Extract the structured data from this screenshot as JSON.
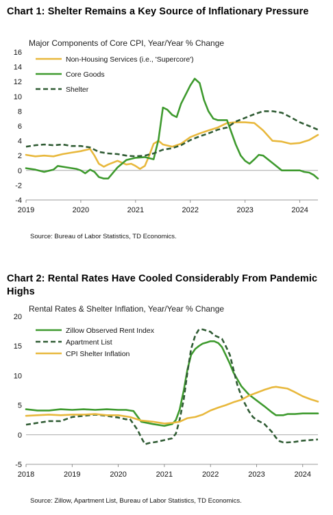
{
  "colors": {
    "supercore": "#E8B83C",
    "core_goods": "#3E9A2E",
    "shelter": "#2F5B33",
    "zillow": "#3E9A2E",
    "apartment_list": "#2F5B33",
    "cpi_shelter": "#E8B83C"
  },
  "chart1_text": {
    "title": "Chart 1: Shelter Remains a Key Source of Inflationary Pressure",
    "subtitle": "Major Components of Core CPI, Year/Year % Change",
    "source": "Source:  Bureau of Labor Statistics, TD Economics."
  },
  "chart2_text": {
    "title": "Chart 2: Rental Rates Have Cooled Considerably From Pandemic Highs",
    "subtitle": "Rental Rates & Shelter Inflation, Year/Year % Change",
    "source": "Source:  Zillow,  Apartment List, Bureau of Labor Statistics, TD Economics."
  },
  "chart_data": [
    {
      "type": "line",
      "title": "Chart 1: Shelter Remains a Key Source of Inflationary Pressure",
      "subtitle": "Major Components of Core CPI, Year/Year % Change",
      "xlim": [
        2019.0,
        2024.33
      ],
      "ylim": [
        -4,
        16
      ],
      "yticks": [
        -4,
        -2,
        0,
        2,
        4,
        6,
        8,
        10,
        12,
        14,
        16
      ],
      "xticks": [
        2019,
        2020,
        2021,
        2022,
        2023,
        2024
      ],
      "grid": false,
      "legend_position": "top-left",
      "series": [
        {
          "name": "Non-Housing Services (i.e., 'Supercore')",
          "style": "solid",
          "x": [
            2019.0,
            2019.17,
            2019.33,
            2019.5,
            2019.67,
            2019.83,
            2020.0,
            2020.17,
            2020.25,
            2020.33,
            2020.42,
            2020.5,
            2020.67,
            2020.83,
            2020.92,
            2021.0,
            2021.08,
            2021.17,
            2021.25,
            2021.33,
            2021.42,
            2021.5,
            2021.67,
            2021.83,
            2022.0,
            2022.17,
            2022.33,
            2022.5,
            2022.67,
            2022.83,
            2023.0,
            2023.17,
            2023.33,
            2023.5,
            2023.67,
            2023.83,
            2024.0,
            2024.17,
            2024.33
          ],
          "y": [
            2.1,
            1.9,
            2.0,
            1.9,
            2.2,
            2.4,
            2.6,
            2.9,
            2.0,
            0.9,
            0.5,
            0.8,
            1.3,
            0.8,
            0.9,
            0.6,
            0.2,
            0.6,
            2.0,
            3.6,
            4.0,
            3.5,
            3.2,
            3.6,
            4.5,
            5.0,
            5.4,
            5.8,
            6.4,
            6.5,
            6.5,
            6.4,
            5.4,
            4.0,
            3.9,
            3.6,
            3.7,
            4.1,
            4.8
          ]
        },
        {
          "name": "Core Goods",
          "style": "solid",
          "x": [
            2019.0,
            2019.17,
            2019.33,
            2019.5,
            2019.58,
            2019.75,
            2019.92,
            2020.0,
            2020.08,
            2020.17,
            2020.25,
            2020.33,
            2020.42,
            2020.5,
            2020.58,
            2020.67,
            2020.83,
            2021.0,
            2021.17,
            2021.33,
            2021.42,
            2021.5,
            2021.58,
            2021.67,
            2021.75,
            2021.83,
            2022.0,
            2022.08,
            2022.17,
            2022.25,
            2022.33,
            2022.42,
            2022.5,
            2022.67,
            2022.83,
            2022.92,
            2023.0,
            2023.08,
            2023.17,
            2023.25,
            2023.33,
            2023.5,
            2023.67,
            2023.83,
            2024.0,
            2024.08,
            2024.17,
            2024.25,
            2024.33
          ],
          "y": [
            0.3,
            0.1,
            -0.2,
            0.1,
            0.6,
            0.4,
            0.2,
            0.0,
            -0.4,
            0.1,
            -0.2,
            -0.9,
            -1.1,
            -1.1,
            -0.4,
            0.4,
            1.4,
            1.7,
            1.8,
            1.5,
            4.2,
            8.5,
            8.2,
            7.5,
            7.2,
            9.0,
            11.5,
            12.4,
            11.8,
            9.5,
            8.0,
            7.0,
            6.8,
            6.8,
            3.5,
            2.0,
            1.3,
            0.9,
            1.5,
            2.1,
            2.0,
            1.0,
            0.0,
            0.0,
            0.0,
            -0.2,
            -0.3,
            -0.6,
            -1.1
          ]
        },
        {
          "name": "Shelter",
          "style": "dashed",
          "x": [
            2019.0,
            2019.17,
            2019.33,
            2019.5,
            2019.67,
            2019.83,
            2020.0,
            2020.17,
            2020.33,
            2020.5,
            2020.67,
            2020.83,
            2021.0,
            2021.17,
            2021.33,
            2021.5,
            2021.67,
            2021.83,
            2022.0,
            2022.17,
            2022.33,
            2022.5,
            2022.67,
            2022.83,
            2023.0,
            2023.17,
            2023.33,
            2023.5,
            2023.67,
            2023.83,
            2024.0,
            2024.17,
            2024.33
          ],
          "y": [
            3.2,
            3.4,
            3.5,
            3.4,
            3.5,
            3.3,
            3.3,
            3.1,
            2.5,
            2.3,
            2.2,
            2.0,
            1.9,
            2.0,
            2.3,
            2.8,
            3.0,
            3.4,
            4.1,
            4.6,
            5.0,
            5.5,
            5.8,
            6.6,
            7.1,
            7.6,
            8.0,
            8.0,
            7.8,
            7.2,
            6.5,
            6.0,
            5.5
          ]
        }
      ]
    },
    {
      "type": "line",
      "title": "Chart 2: Rental Rates Have Cooled Considerably From Pandemic Highs",
      "subtitle": "Rental Rates & Shelter Inflation, Year/Year % Change",
      "xlim": [
        2018.0,
        2024.33
      ],
      "ylim": [
        -5,
        20
      ],
      "yticks": [
        -5,
        0,
        5,
        10,
        15,
        20
      ],
      "xticks": [
        2018,
        2019,
        2020,
        2021,
        2022,
        2023,
        2024
      ],
      "grid": false,
      "legend_position": "top-left",
      "series": [
        {
          "name": "Zillow Observed Rent Index",
          "style": "solid",
          "x": [
            2018.0,
            2018.25,
            2018.5,
            2018.75,
            2019.0,
            2019.25,
            2019.5,
            2019.75,
            2020.0,
            2020.17,
            2020.25,
            2020.33,
            2020.5,
            2020.75,
            2021.0,
            2021.17,
            2021.25,
            2021.33,
            2021.42,
            2021.5,
            2021.58,
            2021.67,
            2021.75,
            2021.83,
            2021.92,
            2022.0,
            2022.08,
            2022.17,
            2022.25,
            2022.33,
            2022.42,
            2022.5,
            2022.67,
            2022.83,
            2023.0,
            2023.17,
            2023.33,
            2023.42,
            2023.5,
            2023.58,
            2023.67,
            2023.83,
            2024.0,
            2024.17,
            2024.33
          ],
          "y": [
            4.3,
            4.1,
            4.1,
            4.3,
            4.2,
            4.3,
            4.2,
            4.3,
            4.2,
            4.2,
            4.1,
            4.0,
            2.2,
            1.8,
            1.5,
            1.8,
            2.5,
            4.2,
            7.5,
            11.0,
            13.5,
            14.5,
            15.0,
            15.4,
            15.6,
            15.8,
            15.8,
            15.5,
            14.8,
            13.5,
            12.0,
            10.5,
            8.2,
            6.8,
            5.8,
            4.8,
            3.8,
            3.3,
            3.3,
            3.3,
            3.5,
            3.5,
            3.6,
            3.6,
            3.6
          ]
        },
        {
          "name": "Apartment List",
          "style": "dashed",
          "x": [
            2018.0,
            2018.25,
            2018.5,
            2018.75,
            2019.0,
            2019.25,
            2019.5,
            2019.75,
            2020.0,
            2020.17,
            2020.25,
            2020.33,
            2020.42,
            2020.5,
            2020.58,
            2020.67,
            2020.83,
            2021.0,
            2021.17,
            2021.25,
            2021.33,
            2021.42,
            2021.5,
            2021.58,
            2021.67,
            2021.75,
            2021.83,
            2022.0,
            2022.08,
            2022.17,
            2022.25,
            2022.33,
            2022.42,
            2022.5,
            2022.58,
            2022.67,
            2022.75,
            2022.83,
            2022.92,
            2023.0,
            2023.17,
            2023.33,
            2023.42,
            2023.5,
            2023.58,
            2023.67,
            2023.83,
            2024.0,
            2024.17,
            2024.33
          ],
          "y": [
            1.7,
            2.0,
            2.3,
            2.3,
            3.0,
            3.2,
            3.4,
            3.2,
            2.9,
            2.6,
            2.7,
            1.8,
            0.8,
            -0.5,
            -1.6,
            -1.4,
            -1.2,
            -0.9,
            -0.6,
            0.2,
            2.5,
            6.0,
            10.5,
            14.5,
            16.8,
            17.8,
            17.8,
            17.4,
            16.8,
            16.5,
            16.2,
            15.0,
            13.5,
            11.0,
            8.5,
            6.5,
            5.2,
            4.0,
            3.0,
            2.5,
            1.8,
            0.5,
            -0.5,
            -1.1,
            -1.3,
            -1.3,
            -1.2,
            -1.0,
            -0.9,
            -0.8
          ]
        },
        {
          "name": "CPI Shelter Inflation",
          "style": "solid",
          "x": [
            2018.0,
            2018.25,
            2018.5,
            2018.75,
            2019.0,
            2019.25,
            2019.5,
            2019.75,
            2020.0,
            2020.25,
            2020.5,
            2020.75,
            2021.0,
            2021.17,
            2021.33,
            2021.5,
            2021.67,
            2021.83,
            2022.0,
            2022.17,
            2022.33,
            2022.5,
            2022.67,
            2022.83,
            2023.0,
            2023.17,
            2023.33,
            2023.42,
            2023.5,
            2023.67,
            2023.83,
            2024.0,
            2024.17,
            2024.33
          ],
          "y": [
            3.2,
            3.3,
            3.4,
            3.3,
            3.4,
            3.4,
            3.5,
            3.3,
            3.3,
            3.0,
            2.4,
            2.2,
            1.9,
            2.0,
            2.2,
            2.8,
            3.0,
            3.4,
            4.1,
            4.6,
            5.0,
            5.5,
            5.9,
            6.6,
            7.1,
            7.6,
            8.0,
            8.1,
            8.0,
            7.8,
            7.2,
            6.5,
            6.0,
            5.6
          ]
        }
      ]
    }
  ]
}
